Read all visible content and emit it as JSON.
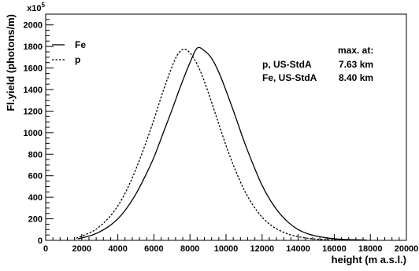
{
  "chart_data": {
    "type": "line",
    "title": "",
    "xlabel": "height (m a.s.l.)",
    "ylabel": "Fl.yield (photons/m)",
    "y_multiplier": "x10",
    "y_multiplier_exp": "5",
    "xlim": [
      0,
      20000
    ],
    "ylim": [
      0,
      2100
    ],
    "x_ticks": [
      0,
      2000,
      4000,
      6000,
      8000,
      10000,
      12000,
      14000,
      16000,
      18000,
      20000
    ],
    "y_ticks": [
      0,
      200,
      400,
      600,
      800,
      1000,
      1200,
      1400,
      1600,
      1800,
      2000
    ],
    "grid": false,
    "legend": {
      "placement": "top-left",
      "entries": [
        {
          "label": "Fe",
          "style": "solid"
        },
        {
          "label": "p",
          "style": "dashed"
        }
      ]
    },
    "annotations": {
      "header": "max. at:",
      "rows": [
        {
          "label": "p, US-StdA",
          "value": "7.63 km"
        },
        {
          "label": "Fe, US-StdA",
          "value": "8.40 km"
        }
      ]
    },
    "series": [
      {
        "name": "Fe",
        "style": "solid",
        "x": [
          1800,
          2500,
          3000,
          3500,
          4000,
          4500,
          5000,
          5500,
          6000,
          6500,
          7000,
          7500,
          8000,
          8400,
          8800,
          9200,
          9600,
          10000,
          10500,
          11000,
          11500,
          12000,
          12500,
          13000,
          13500,
          14000,
          14500,
          15000,
          15500,
          16000,
          16500,
          17000,
          17500,
          17800
        ],
        "y": [
          15,
          45,
          80,
          130,
          200,
          300,
          430,
          590,
          770,
          990,
          1210,
          1440,
          1650,
          1785,
          1760,
          1690,
          1560,
          1390,
          1160,
          920,
          705,
          510,
          360,
          245,
          160,
          100,
          63,
          40,
          25,
          15,
          9,
          6,
          4,
          3
        ]
      },
      {
        "name": "p",
        "style": "dashed",
        "x": [
          1700,
          2500,
          3000,
          3500,
          4000,
          4500,
          5000,
          5500,
          6000,
          6500,
          7000,
          7300,
          7630,
          8000,
          8500,
          9000,
          9500,
          10000,
          10500,
          11000,
          11500,
          12000,
          12500,
          13000,
          13500,
          14000,
          14500,
          15000,
          15500,
          16000,
          16500,
          17000
        ],
        "y": [
          20,
          75,
          130,
          210,
          320,
          470,
          660,
          880,
          1120,
          1380,
          1610,
          1720,
          1775,
          1740,
          1600,
          1380,
          1130,
          880,
          660,
          470,
          325,
          215,
          140,
          90,
          55,
          34,
          20,
          12,
          7,
          4,
          2,
          1
        ]
      }
    ]
  }
}
